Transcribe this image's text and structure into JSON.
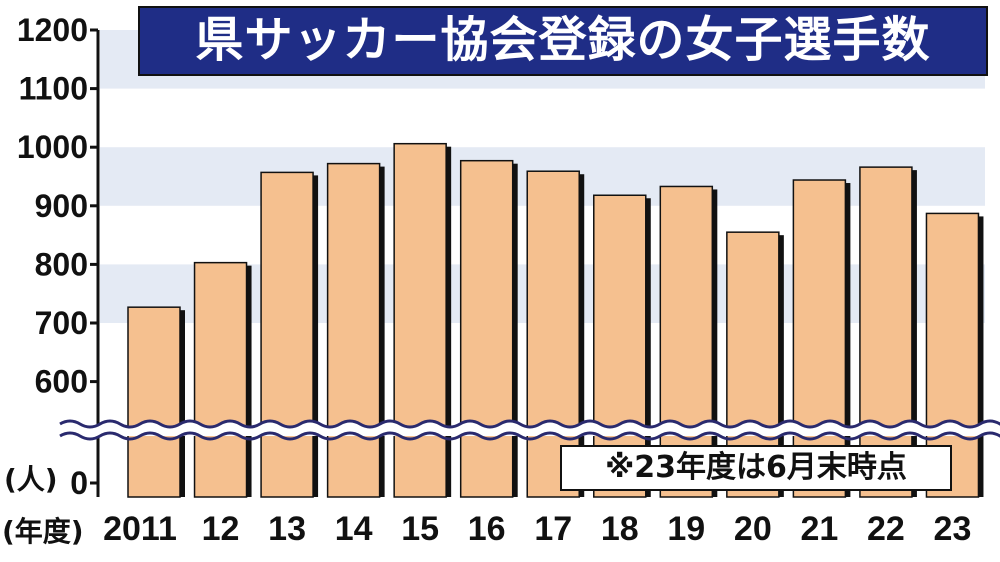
{
  "title": "県サッカー協会登録の女子選手数",
  "note": "※23年度は6月末時点",
  "y_unit_label": "(人)",
  "x_unit_label": "(年度)",
  "colors": {
    "bar": "#f5c08f",
    "bar_shadow": "#111111",
    "title_bg": "#1f2d86",
    "band": "#e4eaf4",
    "axis_break": "#2a2a6e"
  },
  "chart_data": {
    "type": "bar",
    "title": "県サッカー協会登録の女子選手数",
    "xlabel": "(年度)",
    "ylabel": "(人)",
    "categories": [
      "2011",
      "12",
      "13",
      "14",
      "15",
      "16",
      "17",
      "18",
      "19",
      "20",
      "21",
      "22",
      "23"
    ],
    "values": [
      727,
      803,
      957,
      972,
      1006,
      977,
      959,
      918,
      933,
      855,
      944,
      966,
      887
    ],
    "y_ticks": [
      "1200",
      "1100",
      "1000",
      "900",
      "800",
      "700",
      "600",
      "0"
    ],
    "ylim": [
      550,
      1200
    ],
    "axis_break": true,
    "grid": "alternating horizontal bands",
    "legend": "none"
  }
}
